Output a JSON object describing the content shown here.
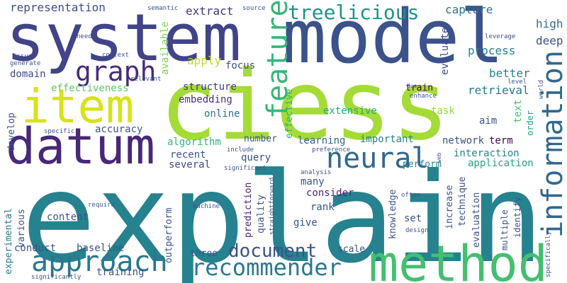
{
  "words": [
    {
      "text": "ciess",
      "color": "#a5db36"
    },
    {
      "text": "explain",
      "color": "#26828e"
    },
    {
      "text": "model",
      "color": "#3b528b"
    },
    {
      "text": "system",
      "color": "#414487"
    },
    {
      "text": "method",
      "color": "#44bf70"
    },
    {
      "text": "datum",
      "color": "#482878"
    },
    {
      "text": "item",
      "color": "#d8e219"
    },
    {
      "text": "information",
      "color": "#31688e"
    },
    {
      "text": "feature",
      "color": "#35b779"
    },
    {
      "text": "approach",
      "color": "#2a788e"
    },
    {
      "text": "recommender",
      "color": "#2a788e"
    },
    {
      "text": "neural",
      "color": "#31688e"
    },
    {
      "text": "graph",
      "color": "#472c7a"
    },
    {
      "text": "treelicious",
      "color": "#21918c"
    },
    {
      "text": "document",
      "color": "#3b528b"
    },
    {
      "text": "representation",
      "color": "#3e4c8a"
    },
    {
      "text": "extract",
      "color": "#46337e"
    },
    {
      "text": "capture",
      "color": "#2c728e"
    },
    {
      "text": "high",
      "color": "#2c718e"
    },
    {
      "text": "deep",
      "color": "#3b528b"
    },
    {
      "text": "available",
      "color": "#7ad151"
    },
    {
      "text": "evaluate",
      "color": "#3e4a89"
    },
    {
      "text": "process",
      "color": "#287d8e"
    },
    {
      "text": "apply",
      "color": "#c2df23"
    },
    {
      "text": "focus",
      "color": "#3b528b"
    },
    {
      "text": "better",
      "color": "#27808e"
    },
    {
      "text": "domain",
      "color": "#3f4889"
    },
    {
      "text": "structure",
      "color": "#453781"
    },
    {
      "text": "train",
      "color": "#440154"
    },
    {
      "text": "retrieval",
      "color": "#2a768e"
    },
    {
      "text": "effectiveness",
      "color": "#5ec962"
    },
    {
      "text": "embedding",
      "color": "#472f7d"
    },
    {
      "text": "extensive",
      "color": "#22a884"
    },
    {
      "text": "task",
      "color": "#8fd744"
    },
    {
      "text": "text",
      "color": "#4ac16d"
    },
    {
      "text": "aim",
      "color": "#3b528b"
    },
    {
      "text": "order",
      "color": "#1fa187"
    },
    {
      "text": "online",
      "color": "#2c728e"
    },
    {
      "text": "effective",
      "color": "#29af7f"
    },
    {
      "text": "develop",
      "color": "#3b528b"
    },
    {
      "text": "accuracy",
      "color": "#3b528b"
    },
    {
      "text": "algorithm",
      "color": "#32b67a"
    },
    {
      "text": "number",
      "color": "#39568c"
    },
    {
      "text": "learning",
      "color": "#33638d"
    },
    {
      "text": "important",
      "color": "#25848e"
    },
    {
      "text": "network",
      "color": "#3b528b"
    },
    {
      "text": "term",
      "color": "#440154"
    },
    {
      "text": "query",
      "color": "#3b528b"
    },
    {
      "text": "recent",
      "color": "#3b528b"
    },
    {
      "text": "interaction",
      "color": "#26828e"
    },
    {
      "text": "several",
      "color": "#3f4889"
    },
    {
      "text": "perform",
      "color": "#26828e"
    },
    {
      "text": "application",
      "color": "#20a486"
    },
    {
      "text": "experimental",
      "color": "#2a788e"
    },
    {
      "text": "various",
      "color": "#3b528b"
    },
    {
      "text": "many",
      "color": "#3b528b"
    },
    {
      "text": "consider",
      "color": "#482475"
    },
    {
      "text": "quality",
      "color": "#3b528b"
    },
    {
      "text": "prediction",
      "color": "#482475"
    },
    {
      "text": "rank",
      "color": "#3b528b"
    },
    {
      "text": "content",
      "color": "#3b528b"
    },
    {
      "text": "give",
      "color": "#3b528b"
    },
    {
      "text": "knowledge",
      "color": "#3b528b"
    },
    {
      "text": "increase",
      "color": "#3b528b"
    },
    {
      "text": "technique",
      "color": "#3b528b"
    },
    {
      "text": "set",
      "color": "#3b528b"
    },
    {
      "text": "evaluation",
      "color": "#3b528b"
    },
    {
      "text": "multiple",
      "color": "#3b528b"
    },
    {
      "text": "identify",
      "color": "#3b528b"
    },
    {
      "text": "outperform",
      "color": "#3b528b"
    },
    {
      "text": "conduct",
      "color": "#3b528b"
    },
    {
      "text": "baseline",
      "color": "#3b528b"
    },
    {
      "text": "scale",
      "color": "#3b528b"
    },
    {
      "text": "three",
      "color": "#3b528b"
    },
    {
      "text": "training",
      "color": "#3b528b"
    },
    {
      "text": "semantic",
      "color": "#3b528b"
    },
    {
      "text": "source",
      "color": "#3b528b"
    },
    {
      "text": "leverage",
      "color": "#3b528b"
    },
    {
      "text": "need",
      "color": "#3b528b"
    },
    {
      "text": "context",
      "color": "#3b528b"
    },
    {
      "text": "issue",
      "color": "#3b528b"
    },
    {
      "text": "generate",
      "color": "#3b528b"
    },
    {
      "text": "relevant",
      "color": "#3b528b"
    },
    {
      "text": "due",
      "color": "#3b528b"
    },
    {
      "text": "enhance",
      "color": "#3b528b"
    },
    {
      "text": "level",
      "color": "#3b528b"
    },
    {
      "text": "world",
      "color": "#3b528b"
    },
    {
      "text": "specific",
      "color": "#3b528b"
    },
    {
      "text": "include",
      "color": "#3b528b"
    },
    {
      "text": "preference",
      "color": "#3b528b"
    },
    {
      "text": "significant",
      "color": "#3b528b"
    },
    {
      "text": "web",
      "color": "#3b528b"
    },
    {
      "text": "analysis",
      "color": "#3b528b"
    },
    {
      "text": "require",
      "color": "#3b528b"
    },
    {
      "text": "machine",
      "color": "#3b528b"
    },
    {
      "text": "straightforward",
      "color": "#3b528b"
    },
    {
      "text": "often",
      "color": "#3b528b"
    },
    {
      "text": "design",
      "color": "#3b528b"
    },
    {
      "text": "significantly",
      "color": "#3b528b"
    },
    {
      "text": "specifically",
      "color": "#3b528b"
    }
  ]
}
